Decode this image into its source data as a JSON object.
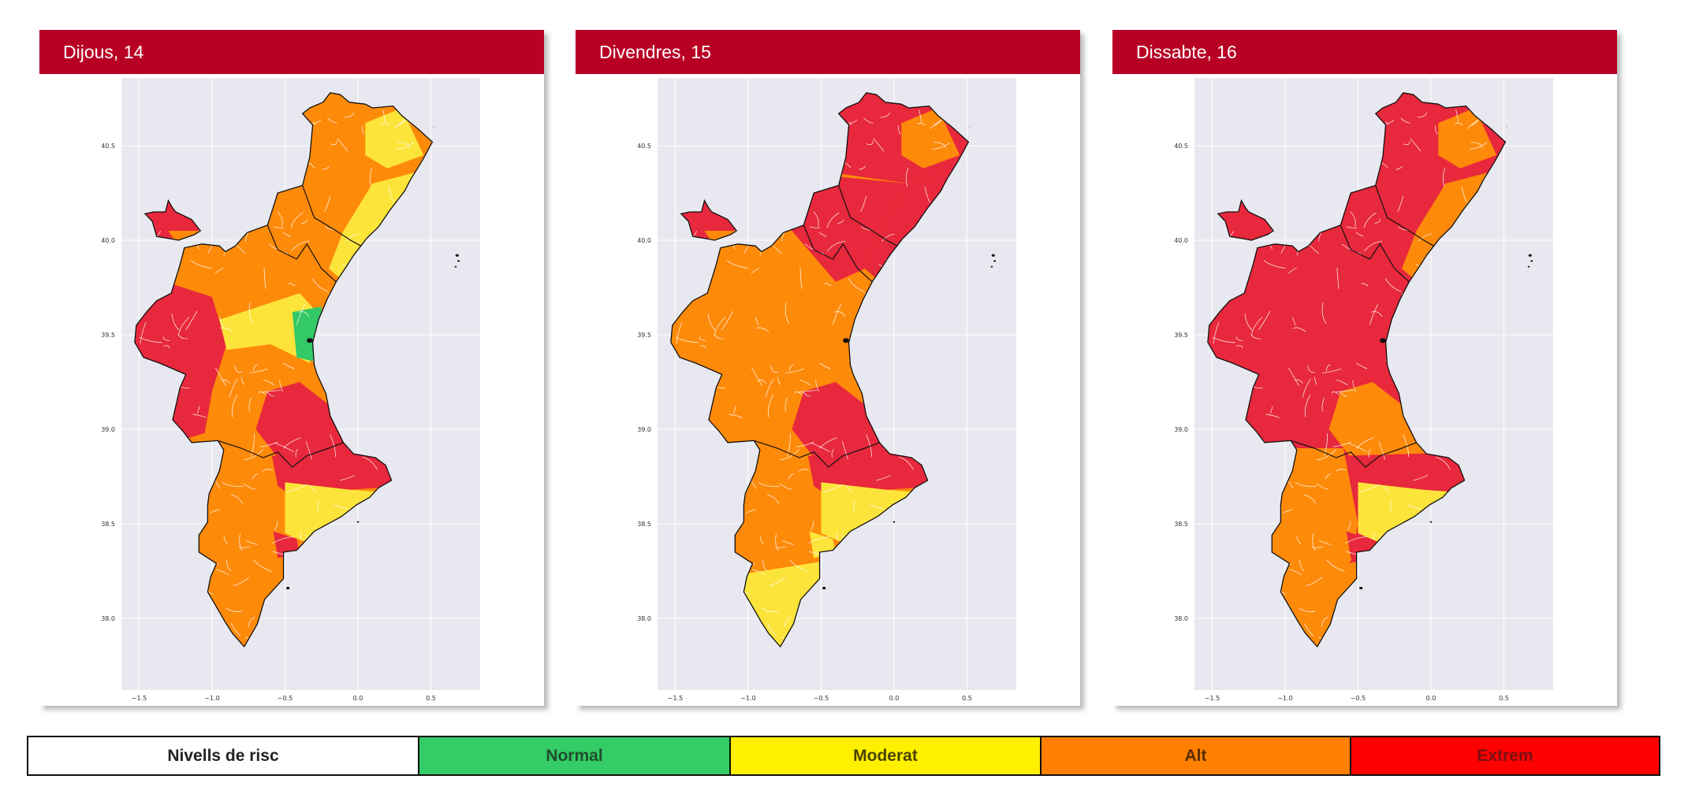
{
  "days": [
    {
      "title": "Dijous, 14",
      "zones": {
        "ademuz": "extrem",
        "z1": "alt",
        "z1b": "moderat",
        "z2": "moderat",
        "z3": "alt",
        "z4": "extrem",
        "z5": "alt",
        "z5b": "moderat",
        "z6": "normal",
        "z7": "extrem",
        "z8": "extrem",
        "z9": "alt",
        "z10": "moderat",
        "z10b": "extrem",
        "z11": "alt"
      }
    },
    {
      "title": "Divendres, 15",
      "zones": {
        "ademuz": "extrem",
        "z1": "extrem",
        "z1b": "alt",
        "z2": "extrem",
        "z3": "extrem",
        "z4": "alt",
        "z5": "alt",
        "z5b": "alt",
        "z6": "alt",
        "z7": "extrem",
        "z8": "extrem",
        "z9": "alt",
        "z10": "moderat",
        "z10b": "moderat",
        "z11": "moderat"
      }
    },
    {
      "title": "Dissabte, 16",
      "zones": {
        "ademuz": "extrem",
        "z1": "extrem",
        "z1b": "alt",
        "z2": "alt",
        "z3": "extrem",
        "z4": "extrem",
        "z5": "extrem",
        "z5b": "extrem",
        "z6": "extrem",
        "z7": "alt",
        "z8": "extrem",
        "z9": "alt",
        "z10": "moderat",
        "z10b": "extrem",
        "z11": "alt"
      }
    }
  ],
  "axes": {
    "x_ticks": [
      "−1.5",
      "−1.0",
      "−0.5",
      "0.0",
      "0.5"
    ],
    "x_tick_values": [
      -1.5,
      -1.0,
      -0.5,
      0.0,
      0.5
    ],
    "y_ticks": [
      "40.5",
      "40.0",
      "39.5",
      "39.0",
      "38.5",
      "38.0"
    ],
    "y_tick_values": [
      40.5,
      40.0,
      39.5,
      39.0,
      38.5,
      38.0
    ],
    "xlim": [
      -1.65,
      0.81
    ],
    "ylim": [
      37.7,
      40.93
    ]
  },
  "legend": {
    "title": "Nivells de risc",
    "levels": [
      {
        "key": "normal",
        "label": "Normal",
        "color": "#33cc66",
        "text_color": "#1f4d2b",
        "map_color": "#33c966"
      },
      {
        "key": "moderat",
        "label": "Moderat",
        "color": "#fff000",
        "text_color": "#4a4300",
        "map_color": "#fde43b"
      },
      {
        "key": "alt",
        "label": "Alt",
        "color": "#ff8000",
        "text_color": "#5a2a00",
        "map_color": "#fe8a0a"
      },
      {
        "key": "extrem",
        "label": "Extrem",
        "color": "#ff0000",
        "text_color": "#7a0f12",
        "map_color": "#e8283c"
      }
    ]
  },
  "colors": {
    "header_bg": "#b80024",
    "plot_bg": "#e8e9f0",
    "grid": "#ffffff"
  }
}
